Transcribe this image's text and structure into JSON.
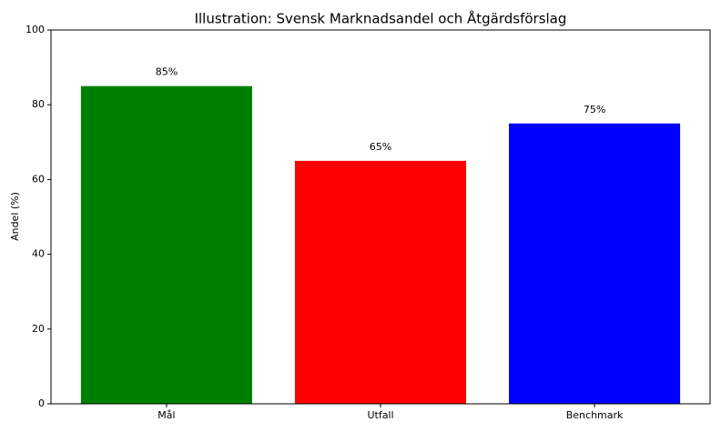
{
  "chart_data": {
    "type": "bar",
    "title": "Illustration: Svensk Marknadsandel och Åtgärdsförslag",
    "ylabel": "Andel (%)",
    "categories": [
      "Mål",
      "Utfall",
      "Benchmark"
    ],
    "values": [
      85,
      65,
      75
    ],
    "value_labels": [
      "85%",
      "65%",
      "75%"
    ],
    "colors": [
      "#008000",
      "#ff0000",
      "#0000ff"
    ],
    "ylim": [
      0,
      100
    ],
    "yticks": [
      0,
      20,
      40,
      60,
      80,
      100
    ],
    "grid": false
  }
}
